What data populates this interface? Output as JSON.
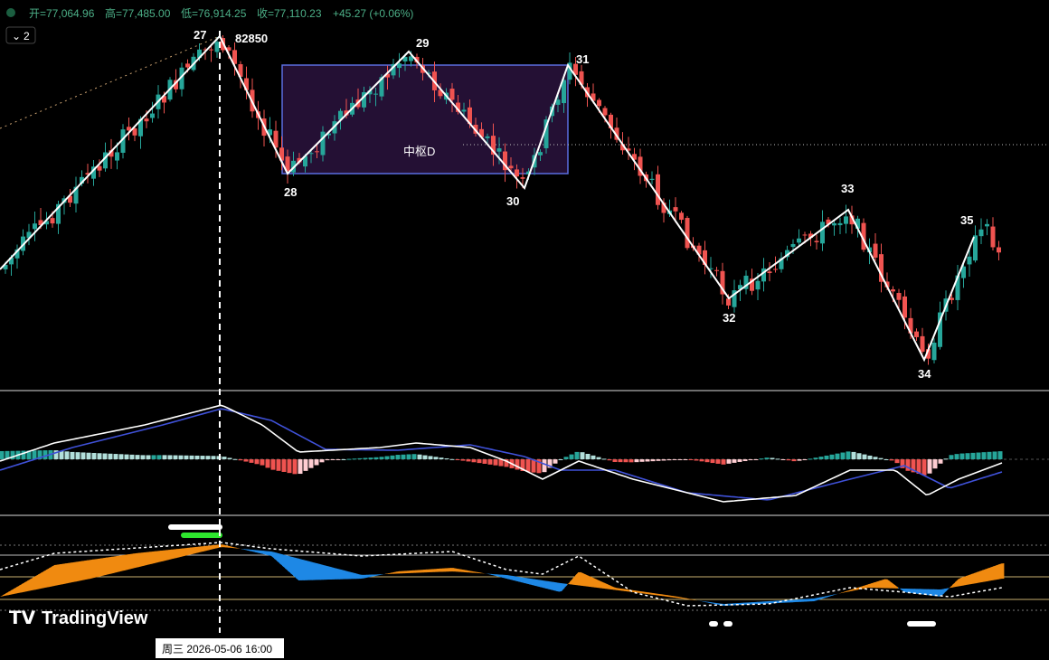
{
  "header": {
    "open": "开=77,064.96",
    "high": "高=77,485.00",
    "low": "低=76,914.25",
    "close": "收=77,110.23",
    "change": "+45.27 (+0.06%)"
  },
  "toolbar": {
    "interval": "2"
  },
  "annotations": {
    "pivots": [
      "27",
      "28",
      "29",
      "30",
      "31",
      "32",
      "33",
      "34",
      "35"
    ],
    "peak_price": "82850",
    "zone": "中枢D"
  },
  "footer": {
    "cursor_date": "周三 2026-05-06   16:00",
    "watermark": "TradingView"
  }
}
